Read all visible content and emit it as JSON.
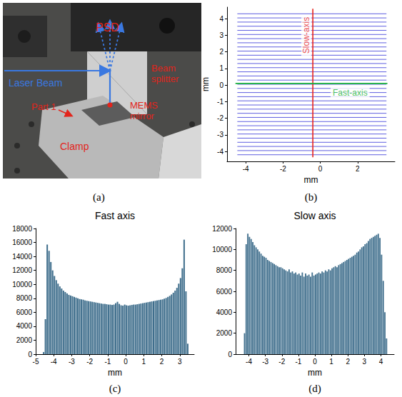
{
  "figure_a": {
    "label": "(a)",
    "nodes": [
      {
        "text": "PSD",
        "color": "#e3241b"
      },
      {
        "text": "Laser Beam",
        "color": "#3a78e0"
      },
      {
        "text": "Beam splitter",
        "color": "#e3241b"
      },
      {
        "text": "Part 1",
        "color": "#e3241b"
      },
      {
        "text": "MEMS mirror",
        "color": "#e3241b"
      },
      {
        "text": "Clamp",
        "color": "#e3241b"
      }
    ]
  },
  "chart_data": [
    {
      "type": "line",
      "label": "(b)",
      "xlabel": "mm",
      "ylabel": "mm",
      "xlim": [
        -5,
        4
      ],
      "xticks": [
        -4,
        -2,
        0,
        2
      ],
      "ylim": [
        -4.6,
        4.7
      ],
      "yticks": [
        -4,
        -3,
        -2,
        -1,
        0,
        1,
        2,
        3,
        4
      ],
      "grid": false,
      "series": [
        {
          "color": "#3535d8",
          "values": [
            [
              -4.45,
              -4.2
            ],
            [
              3.55,
              -4.2
            ],
            null,
            [
              -4.45,
              -3.95
            ],
            [
              3.55,
              -3.95
            ],
            null,
            [
              -4.45,
              -3.7
            ],
            [
              3.55,
              -3.7
            ],
            null,
            [
              -4.45,
              -3.45
            ],
            [
              3.55,
              -3.45
            ],
            null,
            [
              -4.45,
              -3.2
            ],
            [
              3.55,
              -3.2
            ],
            null,
            [
              -4.45,
              -2.95
            ],
            [
              3.55,
              -2.95
            ],
            null,
            [
              -4.45,
              -2.7
            ],
            [
              3.55,
              -2.7
            ],
            null,
            [
              -4.45,
              -2.45
            ],
            [
              3.55,
              -2.45
            ],
            null,
            [
              -4.45,
              -2.2
            ],
            [
              3.55,
              -2.2
            ],
            null,
            [
              -4.45,
              -1.95
            ],
            [
              3.55,
              -1.95
            ],
            null,
            [
              -4.45,
              -1.7
            ],
            [
              3.55,
              -1.7
            ],
            null,
            [
              -4.45,
              -1.45
            ],
            [
              3.55,
              -1.45
            ],
            null,
            [
              -4.45,
              -1.2
            ],
            [
              3.55,
              -1.2
            ],
            null,
            [
              -4.45,
              -0.95
            ],
            [
              3.55,
              -0.95
            ],
            null,
            [
              -4.45,
              -0.7
            ],
            [
              3.55,
              -0.7
            ],
            null,
            [
              -4.45,
              -0.45
            ],
            [
              3.55,
              -0.45
            ],
            null,
            [
              -4.45,
              -0.2
            ],
            [
              3.55,
              -0.2
            ],
            null,
            [
              -4.45,
              0.05
            ],
            [
              3.55,
              0.05
            ],
            null,
            [
              -4.45,
              0.3
            ],
            [
              3.55,
              0.3
            ],
            null,
            [
              -4.45,
              0.55
            ],
            [
              3.55,
              0.55
            ],
            null,
            [
              -4.45,
              0.8
            ],
            [
              3.55,
              0.8
            ],
            null,
            [
              -4.45,
              1.05
            ],
            [
              3.55,
              1.05
            ],
            null,
            [
              -4.45,
              1.3
            ],
            [
              3.55,
              1.3
            ],
            null,
            [
              -4.45,
              1.55
            ],
            [
              3.55,
              1.55
            ],
            null,
            [
              -4.45,
              1.8
            ],
            [
              3.55,
              1.8
            ],
            null,
            [
              -4.45,
              2.05
            ],
            [
              3.55,
              2.05
            ],
            null,
            [
              -4.45,
              2.3
            ],
            [
              3.55,
              2.3
            ],
            null,
            [
              -4.45,
              2.55
            ],
            [
              3.55,
              2.55
            ],
            null,
            [
              -4.45,
              2.8
            ],
            [
              3.55,
              2.8
            ],
            null,
            [
              -4.45,
              3.05
            ],
            [
              3.55,
              3.05
            ],
            null,
            [
              -4.45,
              3.3
            ],
            [
              3.55,
              3.3
            ],
            null,
            [
              -4.45,
              3.55
            ],
            [
              3.55,
              3.55
            ],
            null,
            [
              -4.45,
              3.8
            ],
            [
              3.55,
              3.8
            ],
            null,
            [
              -4.45,
              4.05
            ],
            [
              3.55,
              4.05
            ],
            null,
            [
              -4.45,
              4.3
            ],
            [
              3.55,
              4.3
            ]
          ]
        },
        {
          "color": "#e8231e",
          "values": [
            [
              -0.4,
              -4.35
            ],
            [
              -0.4,
              4.6
            ]
          ],
          "annotation": {
            "text": "Slow-axis",
            "x": -0.75,
            "y": 3.0
          }
        },
        {
          "color": "#19b23a",
          "values": [
            [
              -4.55,
              0.1
            ],
            [
              3.6,
              0.1
            ]
          ],
          "annotation": {
            "text": "Fast-axis",
            "x": 1.6,
            "y": -0.45
          }
        }
      ]
    },
    {
      "type": "histogram",
      "label": "(c)",
      "title": "Fast axis",
      "xlabel": "mm",
      "xlim": [
        -5,
        3.8
      ],
      "xticks": [
        -5,
        -4,
        -3,
        -2,
        -1,
        0,
        1,
        2,
        3
      ],
      "ylim": [
        0,
        18000
      ],
      "yticks": [
        0,
        2000,
        4000,
        6000,
        8000,
        10000,
        12000,
        14000,
        16000,
        18000
      ],
      "grid": false,
      "color": "#3f6e8c",
      "bins": [
        -4.6,
        -4.5,
        -4.4,
        -4.3,
        -4.2,
        -4.1,
        -4.0,
        -3.9,
        -3.8,
        -3.7,
        -3.6,
        -3.5,
        -3.4,
        -3.3,
        -3.2,
        -3.1,
        -3.0,
        -2.9,
        -2.8,
        -2.7,
        -2.6,
        -2.5,
        -2.4,
        -2.3,
        -2.2,
        -2.1,
        -2.0,
        -1.9,
        -1.8,
        -1.7,
        -1.6,
        -1.5,
        -1.4,
        -1.3,
        -1.2,
        -1.1,
        -1.0,
        -0.9,
        -0.8,
        -0.7,
        -0.6,
        -0.5,
        -0.4,
        -0.3,
        -0.2,
        -0.1,
        0.0,
        0.1,
        0.2,
        0.3,
        0.4,
        0.5,
        0.6,
        0.7,
        0.8,
        0.9,
        1.0,
        1.1,
        1.2,
        1.3,
        1.4,
        1.5,
        1.6,
        1.7,
        1.8,
        1.9,
        2.0,
        2.1,
        2.2,
        2.3,
        2.4,
        2.5,
        2.6,
        2.7,
        2.8,
        2.9,
        3.0,
        3.1,
        3.2,
        3.3,
        3.4,
        3.5
      ],
      "counts": [
        300,
        5000,
        15700,
        14800,
        13200,
        12000,
        11200,
        10600,
        10100,
        9700,
        9400,
        9100,
        8900,
        8700,
        8500,
        8400,
        8300,
        8200,
        8100,
        8000,
        7900,
        7850,
        7800,
        7700,
        7650,
        7600,
        7550,
        7500,
        7450,
        7400,
        7350,
        7300,
        7250,
        7200,
        7200,
        7150,
        7100,
        7100,
        7050,
        7100,
        7300,
        7500,
        7200,
        7000,
        6950,
        7100,
        7000,
        6950,
        7000,
        7050,
        7100,
        7100,
        7150,
        7200,
        7250,
        7300,
        7350,
        7400,
        7450,
        7500,
        7550,
        7600,
        7650,
        7700,
        7750,
        7800,
        7850,
        7950,
        8050,
        8200,
        8350,
        8550,
        8800,
        9100,
        9500,
        10100,
        10900,
        12300,
        16400,
        9000,
        1500
      ]
    },
    {
      "type": "histogram",
      "label": "(d)",
      "title": "Slow axis",
      "xlabel": "mm",
      "xlim": [
        -4.8,
        4.8
      ],
      "xticks": [
        -4,
        -3,
        -2,
        -1,
        0,
        1,
        2,
        3,
        4
      ],
      "ylim": [
        0,
        12000
      ],
      "yticks": [
        0,
        2000,
        4000,
        6000,
        8000,
        10000,
        12000
      ],
      "grid": false,
      "color": "#3f6e8c",
      "bins": [
        -4.3,
        -4.2,
        -4.1,
        -4.0,
        -3.9,
        -3.8,
        -3.7,
        -3.6,
        -3.5,
        -3.4,
        -3.3,
        -3.2,
        -3.1,
        -3.0,
        -2.9,
        -2.8,
        -2.7,
        -2.6,
        -2.5,
        -2.4,
        -2.3,
        -2.2,
        -2.1,
        -2.0,
        -1.9,
        -1.8,
        -1.7,
        -1.6,
        -1.5,
        -1.4,
        -1.3,
        -1.2,
        -1.1,
        -1.0,
        -0.9,
        -0.8,
        -0.7,
        -0.6,
        -0.5,
        -0.4,
        -0.3,
        -0.2,
        -0.1,
        0.0,
        0.1,
        0.2,
        0.3,
        0.4,
        0.5,
        0.6,
        0.7,
        0.8,
        0.9,
        1.0,
        1.1,
        1.2,
        1.3,
        1.4,
        1.5,
        1.6,
        1.7,
        1.8,
        1.9,
        2.0,
        2.1,
        2.2,
        2.3,
        2.4,
        2.5,
        2.6,
        2.7,
        2.8,
        2.9,
        3.0,
        3.1,
        3.2,
        3.3,
        3.4,
        3.5,
        3.6,
        3.7,
        3.8,
        3.9,
        4.0,
        4.1,
        4.2,
        4.3,
        4.4
      ],
      "counts": [
        2000,
        10500,
        11500,
        11200,
        11000,
        10700,
        10400,
        10200,
        10000,
        9800,
        9600,
        9400,
        9300,
        9200,
        9000,
        8900,
        8800,
        8700,
        8600,
        8500,
        8400,
        8300,
        8300,
        8200,
        8100,
        8000,
        7900,
        8100,
        7800,
        7900,
        7700,
        7800,
        7600,
        7700,
        7500,
        7800,
        7400,
        7700,
        7500,
        7600,
        7400,
        7800,
        7500,
        7600,
        7700,
        7800,
        7700,
        7900,
        7800,
        8000,
        7900,
        8100,
        8000,
        8200,
        8300,
        8400,
        8300,
        8500,
        8600,
        8700,
        8800,
        8900,
        9000,
        9100,
        9200,
        9300,
        9400,
        9500,
        9700,
        9800,
        10000,
        10200,
        10300,
        10500,
        10600,
        10800,
        11000,
        11100,
        11200,
        11300,
        11400,
        11500,
        11100,
        9500,
        7000,
        4000,
        1500
      ]
    }
  ]
}
